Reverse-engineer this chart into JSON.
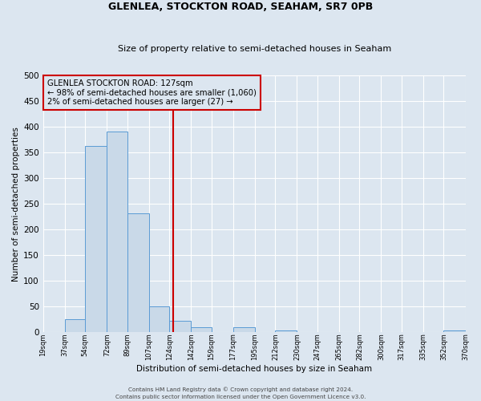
{
  "title": "GLENLEA, STOCKTON ROAD, SEAHAM, SR7 0PB",
  "subtitle": "Size of property relative to semi-detached houses in Seaham",
  "xlabel": "Distribution of semi-detached houses by size in Seaham",
  "ylabel": "Number of semi-detached properties",
  "bin_edges": [
    19,
    37,
    54,
    72,
    89,
    107,
    124,
    142,
    159,
    177,
    195,
    212,
    230,
    247,
    265,
    282,
    300,
    317,
    335,
    352,
    370
  ],
  "bin_labels": [
    "19sqm",
    "37sqm",
    "54sqm",
    "72sqm",
    "89sqm",
    "107sqm",
    "124sqm",
    "142sqm",
    "159sqm",
    "177sqm",
    "195sqm",
    "212sqm",
    "230sqm",
    "247sqm",
    "265sqm",
    "282sqm",
    "300sqm",
    "317sqm",
    "335sqm",
    "352sqm",
    "370sqm"
  ],
  "counts": [
    0,
    25,
    363,
    390,
    232,
    50,
    22,
    9,
    0,
    10,
    0,
    4,
    0,
    0,
    0,
    0,
    0,
    0,
    0,
    3
  ],
  "property_value": 127,
  "bar_face_color": "#c9d9e8",
  "bar_edge_color": "#5b9bd5",
  "vline_color": "#cc0000",
  "annotation_box_edge": "#cc0000",
  "annotation_title": "GLENLEA STOCKTON ROAD: 127sqm",
  "annotation_line1": "← 98% of semi-detached houses are smaller (1,060)",
  "annotation_line2": "2% of semi-detached houses are larger (27) →",
  "ylim": [
    0,
    500
  ],
  "yticks": [
    0,
    50,
    100,
    150,
    200,
    250,
    300,
    350,
    400,
    450,
    500
  ],
  "footer1": "Contains HM Land Registry data © Crown copyright and database right 2024.",
  "footer2": "Contains public sector information licensed under the Open Government Licence v3.0.",
  "background_color": "#dce6f0",
  "grid_color": "#ffffff"
}
